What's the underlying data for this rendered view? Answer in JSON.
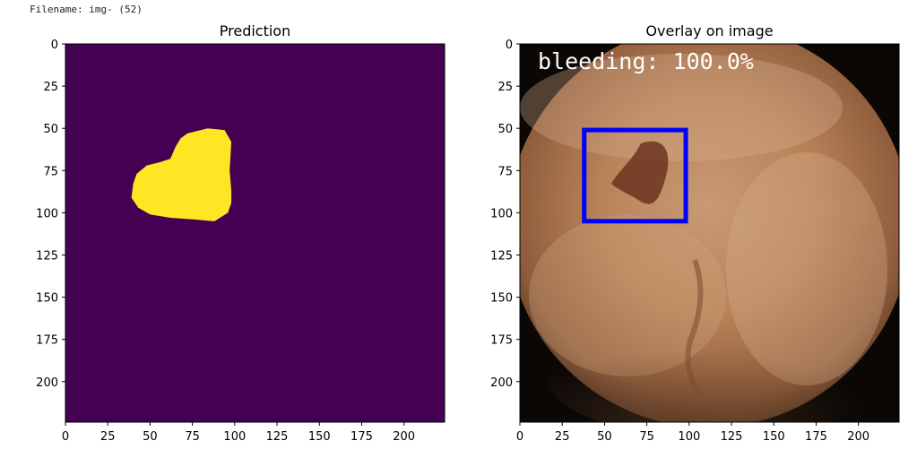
{
  "filename_label": "Filename: img- (52)",
  "chart_data": [
    {
      "type": "heatmap",
      "title": "Prediction",
      "xlim": [
        0,
        224
      ],
      "ylim": [
        224,
        0
      ],
      "x_ticks": [
        0,
        25,
        50,
        75,
        100,
        125,
        150,
        175,
        200
      ],
      "y_ticks": [
        0,
        25,
        50,
        75,
        100,
        125,
        150,
        175,
        200
      ],
      "colormap": {
        "background": "#440154",
        "mask": "#fde725"
      },
      "mask_region": {
        "label": "predicted mask",
        "polygon": [
          [
            72,
            53
          ],
          [
            84,
            50
          ],
          [
            94,
            51
          ],
          [
            98,
            58
          ],
          [
            97,
            75
          ],
          [
            98,
            87
          ],
          [
            98,
            94
          ],
          [
            96,
            100
          ],
          [
            88,
            105
          ],
          [
            76,
            104
          ],
          [
            62,
            103
          ],
          [
            50,
            101
          ],
          [
            43,
            97
          ],
          [
            39,
            91
          ],
          [
            40,
            83
          ],
          [
            42,
            77
          ],
          [
            48,
            72
          ],
          [
            56,
            70
          ],
          [
            62,
            68
          ],
          [
            65,
            61
          ],
          [
            68,
            56
          ]
        ]
      }
    },
    {
      "type": "image",
      "title": "Overlay on image",
      "xlim": [
        0,
        224
      ],
      "ylim": [
        224,
        0
      ],
      "x_ticks": [
        0,
        25,
        50,
        75,
        100,
        125,
        150,
        175,
        200
      ],
      "y_ticks": [
        0,
        25,
        50,
        75,
        100,
        125,
        150,
        175,
        200
      ],
      "overlay_text": "bleeding: 100.0%",
      "bounding_box": {
        "x0": 38,
        "y0": 51,
        "x1": 98,
        "y1": 105,
        "color": "#0000ff"
      }
    }
  ]
}
